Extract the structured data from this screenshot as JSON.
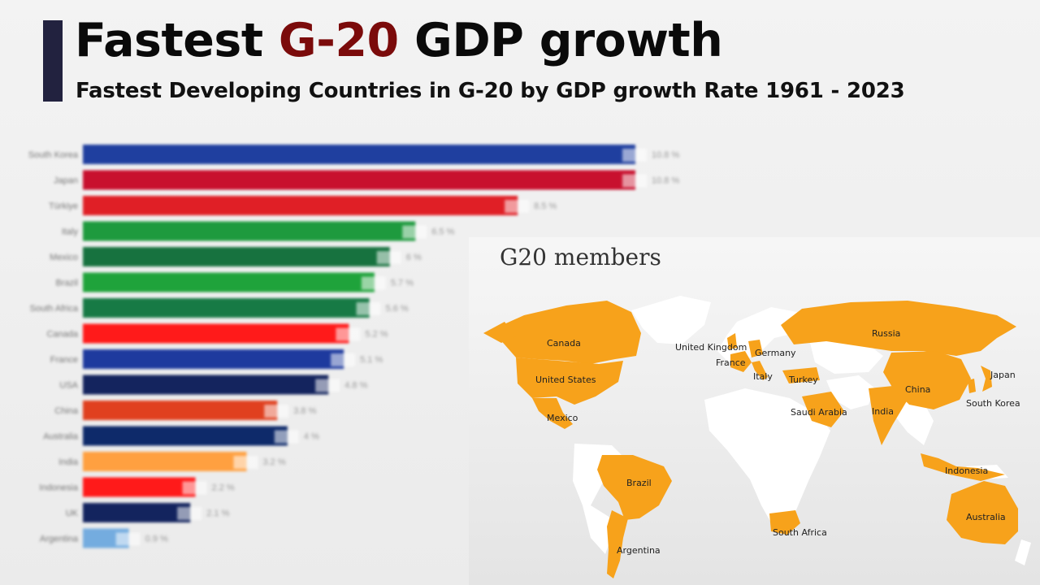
{
  "header": {
    "title_part1": "Fastest ",
    "title_highlight": "G-20",
    "title_part2": " GDP growth",
    "subtitle": "Fastest Developing Countries in G-20 by GDP growth Rate 1961 - 2023"
  },
  "chart_data": {
    "type": "bar",
    "orientation": "horizontal",
    "categories": [
      "South Korea",
      "Japan",
      "Türkiye",
      "Italy",
      "Mexico",
      "Brazil",
      "South Africa",
      "Canada",
      "France",
      "USA",
      "China",
      "Australia",
      "India",
      "Indonesia",
      "UK",
      "Argentina"
    ],
    "values": [
      10.8,
      10.8,
      8.5,
      6.5,
      6,
      5.7,
      5.6,
      5.2,
      5.1,
      4.8,
      3.8,
      4,
      3.2,
      2.2,
      2.1,
      0.9
    ],
    "value_labels": [
      "10.8 %",
      "10.8 %",
      "8.5 %",
      "6.5 %",
      "6 %",
      "5.7 %",
      "5.6 %",
      "5.2 %",
      "5.1 %",
      "4.8 %",
      "3.8 %",
      "4 %",
      "3.2 %",
      "2.2 %",
      "2.1 %",
      "0.9 %"
    ],
    "colors": [
      "#1f3f9f",
      "#c8102e",
      "#e01f26",
      "#1e9a3e",
      "#17723f",
      "#1fa33b",
      "#177a45",
      "#ff1a1a",
      "#1e3a9e",
      "#14245e",
      "#e0401f",
      "#0e2a6a",
      "#ffa040",
      "#ff1a1a",
      "#13245e",
      "#74acdf"
    ],
    "xlim": [
      0,
      10.8
    ],
    "grid": false,
    "legend": "none"
  },
  "map": {
    "title": "G20 members",
    "member_color": "#f7a21b",
    "nonmember_color": "#ffffff",
    "labels": [
      "Canada",
      "United States",
      "Mexico",
      "Brazil",
      "Argentina",
      "United Kingdom",
      "France",
      "Germany",
      "Italy",
      "Turkey",
      "Russia",
      "Saudi Arabia",
      "South Africa",
      "India",
      "China",
      "South Korea",
      "Japan",
      "Indonesia",
      "Australia"
    ]
  }
}
